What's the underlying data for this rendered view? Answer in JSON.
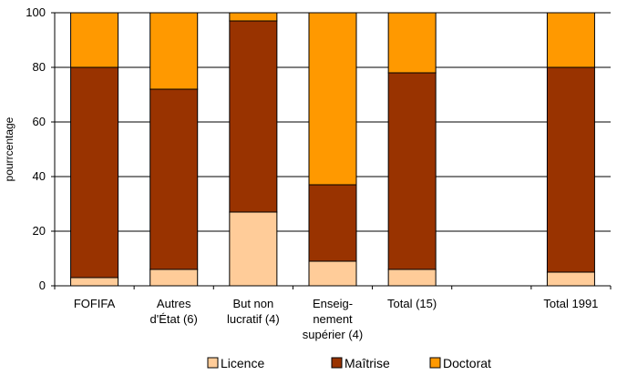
{
  "chart_data": {
    "type": "bar",
    "stacked": true,
    "percent": true,
    "ylabel": "pourrcentage",
    "xlabel": "",
    "ylim": [
      0,
      100
    ],
    "yticks": [
      0,
      20,
      40,
      60,
      80,
      100
    ],
    "grid": true,
    "legend_position": "bottom",
    "categories": [
      [
        "FOFIFA"
      ],
      [
        "Autres",
        "d'État (6)"
      ],
      [
        "But non",
        "lucratif (4)"
      ],
      [
        "Enseig-",
        "nement",
        "supérier (4)"
      ],
      [
        "Total (15)"
      ],
      [
        ""
      ],
      [
        "Total  1991"
      ]
    ],
    "series": [
      {
        "name": "Licence",
        "color": "#FFCC99",
        "values": [
          3,
          6,
          27,
          9,
          6,
          null,
          5
        ]
      },
      {
        "name": "Maîtrise",
        "color": "#993300",
        "values": [
          77,
          66,
          70,
          28,
          72,
          null,
          75
        ]
      },
      {
        "name": "Doctorat",
        "color": "#FF9900",
        "values": [
          20,
          28,
          3,
          63,
          22,
          null,
          20
        ]
      }
    ]
  }
}
